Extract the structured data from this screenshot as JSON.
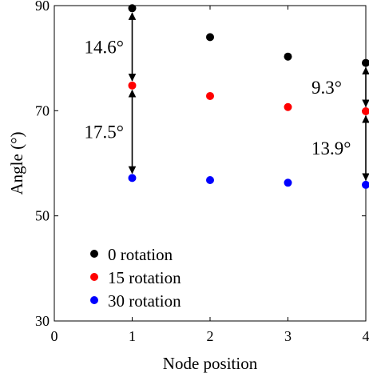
{
  "chart_data": {
    "type": "scatter",
    "xlabel": "Node position",
    "ylabel": "Angle (°)",
    "xlim": [
      0,
      4
    ],
    "ylim": [
      30,
      90
    ],
    "xticks": [
      0,
      1,
      2,
      3,
      4
    ],
    "yticks": [
      30,
      50,
      70,
      90
    ],
    "x_tick_labels": [
      "0",
      "1",
      "2",
      "3",
      "4"
    ],
    "y_tick_labels": [
      "30",
      "50",
      "70",
      "90"
    ],
    "grid": false,
    "legend_position": "bottom-left",
    "x": [
      1,
      2,
      3,
      4
    ],
    "series": [
      {
        "name": "0  rotation",
        "color": "#000000",
        "values": [
          89.5,
          84.0,
          80.3,
          79.1
        ]
      },
      {
        "name": "15  rotation",
        "color": "#ff0000",
        "values": [
          74.8,
          72.8,
          70.7,
          69.9
        ]
      },
      {
        "name": "30  rotation",
        "color": "#0000ff",
        "values": [
          57.2,
          56.8,
          56.3,
          55.9
        ]
      }
    ],
    "annotations": [
      {
        "label": "14.6°",
        "x": 1,
        "from": 89.5,
        "to": 74.8
      },
      {
        "label": "17.5°",
        "x": 1,
        "from": 74.8,
        "to": 57.2
      },
      {
        "label": "9.3°",
        "x": 4,
        "from": 79.1,
        "to": 69.9
      },
      {
        "label": "13.9°",
        "x": 4,
        "from": 69.9,
        "to": 55.9
      }
    ]
  }
}
